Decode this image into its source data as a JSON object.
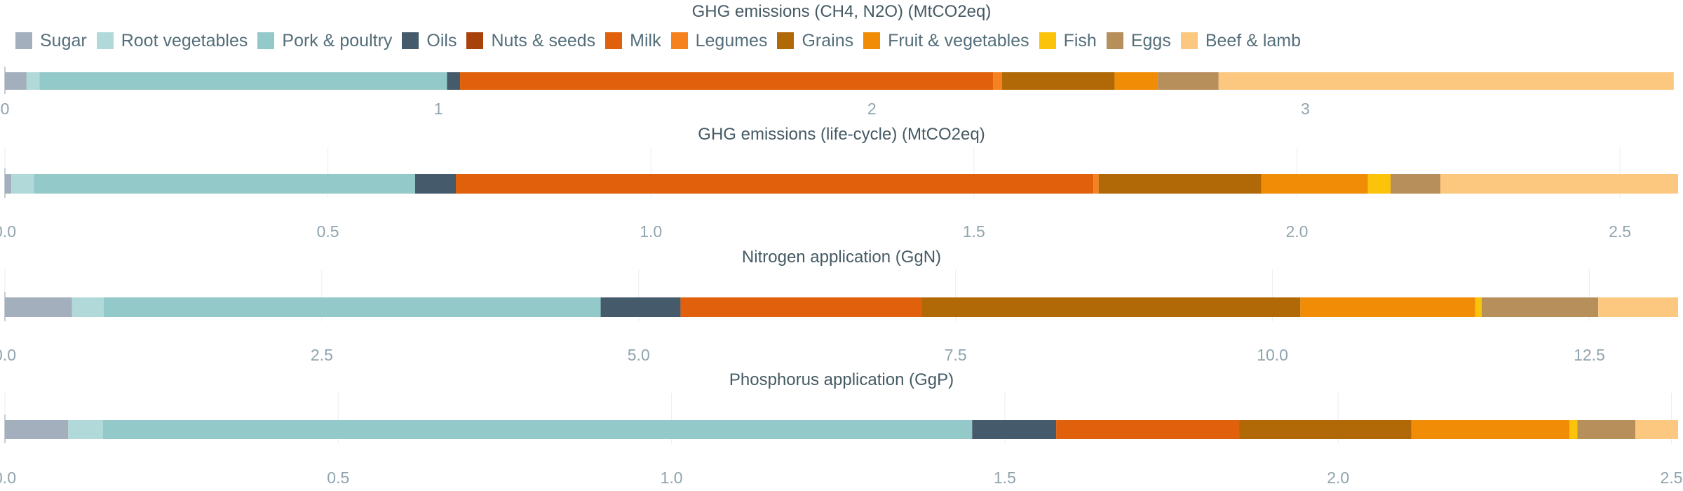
{
  "legend": {
    "items": [
      {
        "label": "Sugar",
        "color": "#a3afbc"
      },
      {
        "label": "Root vegetables",
        "color": "#b1d9d9"
      },
      {
        "label": "Pork & poultry",
        "color": "#94c9c9"
      },
      {
        "label": "Oils",
        "color": "#455a6b"
      },
      {
        "label": "Nuts & seeds",
        "color": "#a8410a"
      },
      {
        "label": "Milk",
        "color": "#e0600c"
      },
      {
        "label": "Legumes",
        "color": "#f5821f"
      },
      {
        "label": "Grains",
        "color": "#b16806"
      },
      {
        "label": "Fruit & vegetables",
        "color": "#f18c06"
      },
      {
        "label": "Fish",
        "color": "#fcc30b"
      },
      {
        "label": "Eggs",
        "color": "#b78f5b"
      },
      {
        "label": "Beef & lamb",
        "color": "#fcc880"
      }
    ]
  },
  "chart_data": [
    {
      "type": "bar",
      "orientation": "horizontal",
      "stacked": true,
      "title": "GHG emissions (CH4, N2O) (MtCO2eq)",
      "xlim": [
        0,
        3.86
      ],
      "ticks": [
        {
          "value": 0,
          "label": "0"
        },
        {
          "value": 1,
          "label": "1"
        },
        {
          "value": 2,
          "label": "2"
        },
        {
          "value": 3,
          "label": "3"
        }
      ],
      "grid": false,
      "series": [
        {
          "name": "Sugar",
          "value": 0.05
        },
        {
          "name": "Root vegetables",
          "value": 0.03
        },
        {
          "name": "Pork & poultry",
          "value": 0.94
        },
        {
          "name": "Oils",
          "value": 0.03
        },
        {
          "name": "Nuts & seeds",
          "value": 0.0
        },
        {
          "name": "Milk",
          "value": 1.23
        },
        {
          "name": "Legumes",
          "value": 0.02
        },
        {
          "name": "Grains",
          "value": 0.26
        },
        {
          "name": "Fruit & vegetables",
          "value": 0.1
        },
        {
          "name": "Fish",
          "value": 0.0
        },
        {
          "name": "Eggs",
          "value": 0.14
        },
        {
          "name": "Beef & lamb",
          "value": 1.05
        }
      ]
    },
    {
      "type": "bar",
      "orientation": "horizontal",
      "stacked": true,
      "title": "GHG emissions (life-cycle) (MtCO2eq)",
      "xlim": [
        0,
        2.59
      ],
      "ticks": [
        {
          "value": 0,
          "label": "0.0"
        },
        {
          "value": 0.5,
          "label": "0.5"
        },
        {
          "value": 1.0,
          "label": "1.0"
        },
        {
          "value": 1.5,
          "label": "1.5"
        },
        {
          "value": 2.0,
          "label": "2.0"
        },
        {
          "value": 2.5,
          "label": "2.5"
        }
      ],
      "grid": true,
      "series": [
        {
          "name": "Sugar",
          "value": 0.01
        },
        {
          "name": "Root vegetables",
          "value": 0.035
        },
        {
          "name": "Pork & poultry",
          "value": 0.59
        },
        {
          "name": "Oils",
          "value": 0.063
        },
        {
          "name": "Nuts & seeds",
          "value": 0.0
        },
        {
          "name": "Milk",
          "value": 0.987
        },
        {
          "name": "Legumes",
          "value": 0.008
        },
        {
          "name": "Grains",
          "value": 0.252
        },
        {
          "name": "Fruit & vegetables",
          "value": 0.165
        },
        {
          "name": "Fish",
          "value": 0.035
        },
        {
          "name": "Eggs",
          "value": 0.077
        },
        {
          "name": "Beef & lamb",
          "value": 0.368
        }
      ]
    },
    {
      "type": "bar",
      "orientation": "horizontal",
      "stacked": true,
      "title": "Nitrogen application (GgN)",
      "xlim": [
        0,
        13.2
      ],
      "ticks": [
        {
          "value": 0,
          "label": "0.0"
        },
        {
          "value": 2.5,
          "label": "2.5"
        },
        {
          "value": 5.0,
          "label": "5.0"
        },
        {
          "value": 7.5,
          "label": "7.5"
        },
        {
          "value": 10.0,
          "label": "10.0"
        },
        {
          "value": 12.5,
          "label": "12.5"
        }
      ],
      "grid": true,
      "series": [
        {
          "name": "Sugar",
          "value": 0.53
        },
        {
          "name": "Root vegetables",
          "value": 0.25
        },
        {
          "name": "Pork & poultry",
          "value": 3.92
        },
        {
          "name": "Oils",
          "value": 0.63
        },
        {
          "name": "Nuts & seeds",
          "value": 0.0
        },
        {
          "name": "Milk",
          "value": 1.9
        },
        {
          "name": "Legumes",
          "value": 0.0
        },
        {
          "name": "Grains",
          "value": 2.99
        },
        {
          "name": "Fruit & vegetables",
          "value": 1.38
        },
        {
          "name": "Fish",
          "value": 0.05
        },
        {
          "name": "Eggs",
          "value": 0.92
        },
        {
          "name": "Beef & lamb",
          "value": 0.63
        }
      ]
    },
    {
      "type": "bar",
      "orientation": "horizontal",
      "stacked": true,
      "title": "Phosphorus application (GgP)",
      "xlim": [
        0,
        2.51
      ],
      "ticks": [
        {
          "value": 0,
          "label": "0.0"
        },
        {
          "value": 0.5,
          "label": "0.5"
        },
        {
          "value": 1.0,
          "label": "1.0"
        },
        {
          "value": 1.5,
          "label": "1.5"
        },
        {
          "value": 2.0,
          "label": "2.0"
        },
        {
          "value": 2.5,
          "label": "2.5"
        }
      ],
      "grid": true,
      "series": [
        {
          "name": "Sugar",
          "value": 0.095
        },
        {
          "name": "Root vegetables",
          "value": 0.052
        },
        {
          "name": "Pork & poultry",
          "value": 1.304
        },
        {
          "name": "Oils",
          "value": 0.126
        },
        {
          "name": "Nuts & seeds",
          "value": 0.0
        },
        {
          "name": "Milk",
          "value": 0.275
        },
        {
          "name": "Legumes",
          "value": 0.0
        },
        {
          "name": "Grains",
          "value": 0.258
        },
        {
          "name": "Fruit & vegetables",
          "value": 0.237
        },
        {
          "name": "Fish",
          "value": 0.012
        },
        {
          "name": "Eggs",
          "value": 0.087
        },
        {
          "name": "Beef & lamb",
          "value": 0.064
        }
      ]
    }
  ]
}
